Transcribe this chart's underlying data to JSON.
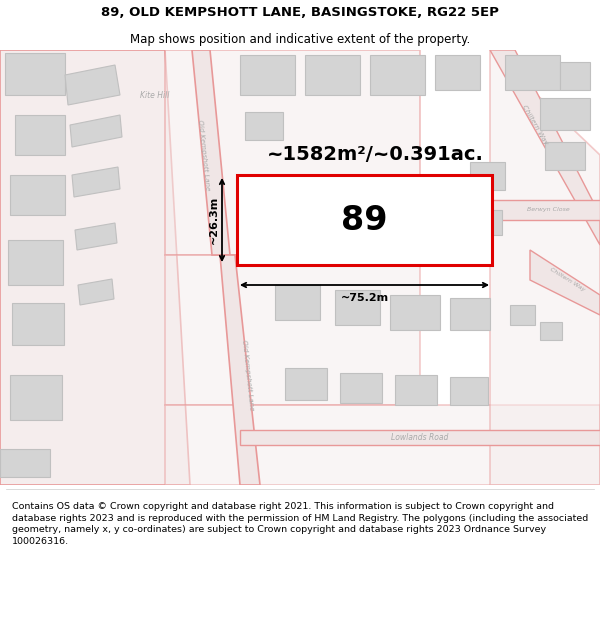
{
  "title_line1": "89, OLD KEMPSHOTT LANE, BASINGSTOKE, RG22 5EP",
  "title_line2": "Map shows position and indicative extent of the property.",
  "footer_text": "Contains OS data © Crown copyright and database right 2021. This information is subject to Crown copyright and database rights 2023 and is reproduced with the permission of HM Land Registry. The polygons (including the associated geometry, namely x, y co-ordinates) are subject to Crown copyright and database rights 2023 Ordnance Survey 100026316.",
  "area_label": "~1582m²/~0.391ac.",
  "property_number": "89",
  "width_label": "~75.2m",
  "height_label": "~26.3m",
  "map_bg": "#f7f0f0",
  "road_stroke": "#e89898",
  "road_fill": "#f5eded",
  "building_stroke": "#c0c0c0",
  "building_fill": "#d4d4d4",
  "highlight_stroke": "#e00000",
  "highlight_fill": "#ffffff",
  "text_gray": "#999999",
  "white": "#ffffff"
}
